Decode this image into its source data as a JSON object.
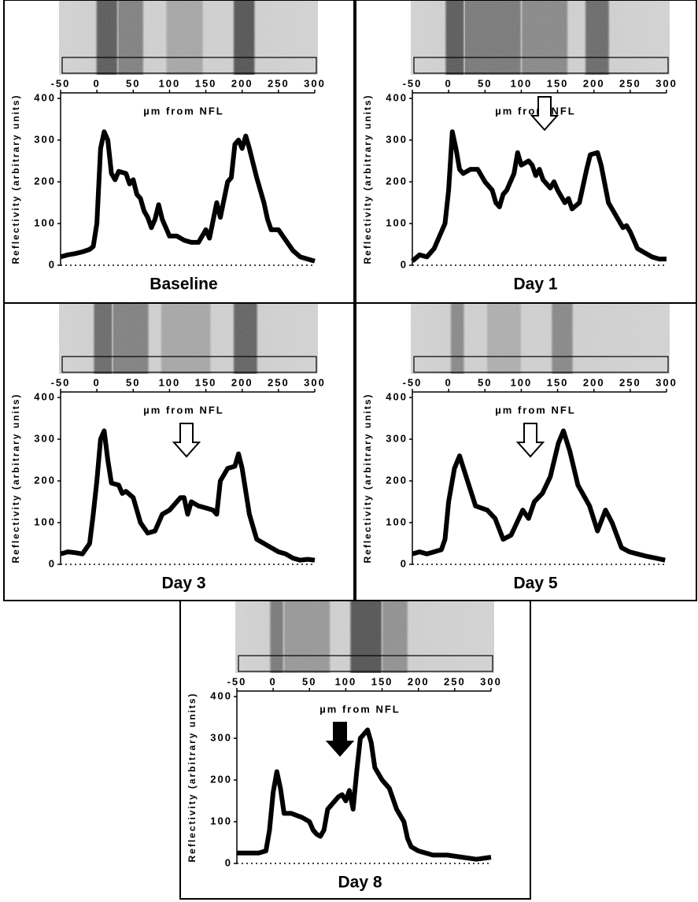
{
  "chart_data": [
    {
      "type": "line",
      "title": "Baseline",
      "xlabel": "µm from NFL",
      "ylabel": "Reflectivity (arbitrary units)",
      "color": "#000000",
      "xlim": [
        -50,
        300
      ],
      "ylim": [
        0,
        400
      ],
      "xticks": [
        -50,
        0,
        50,
        100,
        150,
        200,
        250,
        300
      ],
      "yticks": [
        0,
        100,
        200,
        300,
        400
      ],
      "x": [
        -50,
        -40,
        -30,
        -20,
        -10,
        -5,
        0,
        5,
        10,
        15,
        20,
        25,
        30,
        40,
        45,
        50,
        55,
        60,
        65,
        70,
        75,
        80,
        85,
        90,
        100,
        110,
        120,
        130,
        140,
        150,
        155,
        165,
        170,
        180,
        185,
        190,
        195,
        200,
        205,
        210,
        220,
        230,
        235,
        240,
        250,
        260,
        270,
        280,
        290,
        300
      ],
      "values": [
        20,
        25,
        28,
        32,
        38,
        45,
        100,
        280,
        320,
        300,
        220,
        205,
        225,
        220,
        195,
        205,
        170,
        160,
        130,
        115,
        90,
        110,
        145,
        110,
        70,
        70,
        60,
        55,
        55,
        85,
        65,
        150,
        115,
        200,
        210,
        290,
        300,
        280,
        310,
        280,
        210,
        150,
        110,
        85,
        85,
        60,
        35,
        20,
        15,
        10
      ]
    },
    {
      "type": "line",
      "title": "Day 1",
      "xlabel": "µm from NFL",
      "ylabel": "Reflectivity (arbitrary units)",
      "color": "#000000",
      "xlim": [
        -50,
        300
      ],
      "ylim": [
        0,
        400
      ],
      "xticks": [
        -50,
        0,
        50,
        100,
        150,
        200,
        250,
        300
      ],
      "yticks": [
        0,
        100,
        200,
        300,
        400
      ],
      "x": [
        -50,
        -40,
        -30,
        -20,
        -10,
        -5,
        0,
        5,
        10,
        15,
        20,
        30,
        40,
        50,
        60,
        65,
        70,
        75,
        80,
        90,
        95,
        100,
        110,
        115,
        120,
        125,
        130,
        140,
        145,
        150,
        160,
        165,
        170,
        180,
        190,
        195,
        205,
        210,
        220,
        230,
        240,
        245,
        250,
        260,
        270,
        280,
        290,
        300
      ],
      "values": [
        10,
        25,
        20,
        40,
        80,
        100,
        180,
        320,
        280,
        230,
        220,
        230,
        230,
        200,
        180,
        150,
        140,
        170,
        180,
        220,
        270,
        240,
        250,
        240,
        215,
        230,
        205,
        185,
        200,
        180,
        150,
        160,
        135,
        150,
        230,
        265,
        270,
        240,
        150,
        120,
        90,
        95,
        80,
        40,
        30,
        20,
        15,
        15
      ]
    },
    {
      "type": "line",
      "title": "Day 3",
      "xlabel": "µm from NFL",
      "ylabel": "Reflectivity (arbitrary units)",
      "color": "#000000",
      "xlim": [
        -50,
        300
      ],
      "ylim": [
        0,
        400
      ],
      "xticks": [
        -50,
        0,
        50,
        100,
        150,
        200,
        250,
        300
      ],
      "yticks": [
        0,
        100,
        200,
        300,
        400
      ],
      "x": [
        -50,
        -40,
        -30,
        -20,
        -10,
        -5,
        0,
        5,
        10,
        15,
        20,
        30,
        35,
        40,
        50,
        60,
        70,
        80,
        90,
        100,
        110,
        115,
        120,
        125,
        130,
        140,
        150,
        160,
        165,
        170,
        180,
        190,
        195,
        200,
        210,
        220,
        230,
        240,
        250,
        260,
        270,
        280,
        290,
        300
      ],
      "values": [
        25,
        30,
        28,
        25,
        50,
        120,
        200,
        300,
        320,
        250,
        195,
        190,
        170,
        175,
        160,
        100,
        75,
        80,
        120,
        130,
        150,
        160,
        160,
        120,
        150,
        140,
        135,
        130,
        120,
        200,
        230,
        235,
        265,
        230,
        120,
        60,
        50,
        40,
        30,
        25,
        15,
        10,
        12,
        10
      ]
    },
    {
      "type": "line",
      "title": "Day 5",
      "xlabel": "µm from NFL",
      "ylabel": "Reflectivity (arbitrary units)",
      "color": "#000000",
      "xlim": [
        -50,
        300
      ],
      "ylim": [
        0,
        400
      ],
      "xticks": [
        -50,
        0,
        50,
        100,
        150,
        200,
        250,
        300
      ],
      "yticks": [
        0,
        100,
        200,
        300,
        400
      ],
      "x": [
        -50,
        -40,
        -30,
        -20,
        -10,
        -5,
        0,
        8,
        15,
        26,
        37,
        53,
        64,
        75,
        86,
        102,
        110,
        118,
        129,
        140,
        151,
        158,
        167,
        178,
        194,
        205,
        216,
        225,
        238,
        249,
        260,
        271,
        285,
        298
      ],
      "values": [
        25,
        30,
        25,
        30,
        35,
        60,
        150,
        230,
        260,
        200,
        140,
        130,
        110,
        60,
        70,
        130,
        110,
        150,
        170,
        210,
        290,
        320,
        270,
        190,
        140,
        80,
        130,
        100,
        40,
        30,
        25,
        20,
        15,
        10
      ]
    },
    {
      "type": "line",
      "title": "Day 8",
      "xlabel": "µm from NFL",
      "ylabel": "Reflectivity (arbitrary units)",
      "color": "#000000",
      "xlim": [
        -50,
        300
      ],
      "ylim": [
        0,
        400
      ],
      "xticks": [
        -50,
        0,
        50,
        100,
        150,
        200,
        250,
        300
      ],
      "yticks": [
        0,
        100,
        200,
        300,
        400
      ],
      "x": [
        -50,
        -40,
        -20,
        -10,
        -5,
        0,
        5,
        10,
        15,
        25,
        40,
        50,
        55,
        60,
        65,
        70,
        75,
        85,
        90,
        95,
        100,
        105,
        110,
        115,
        120,
        125,
        130,
        135,
        140,
        150,
        160,
        170,
        180,
        185,
        190,
        200,
        220,
        240,
        260,
        280,
        300
      ],
      "values": [
        25,
        25,
        25,
        30,
        80,
        170,
        220,
        180,
        120,
        120,
        110,
        100,
        80,
        70,
        65,
        80,
        130,
        150,
        160,
        165,
        150,
        175,
        130,
        220,
        300,
        310,
        320,
        290,
        230,
        200,
        180,
        130,
        100,
        60,
        40,
        30,
        20,
        20,
        15,
        10,
        15
      ]
    }
  ]
}
